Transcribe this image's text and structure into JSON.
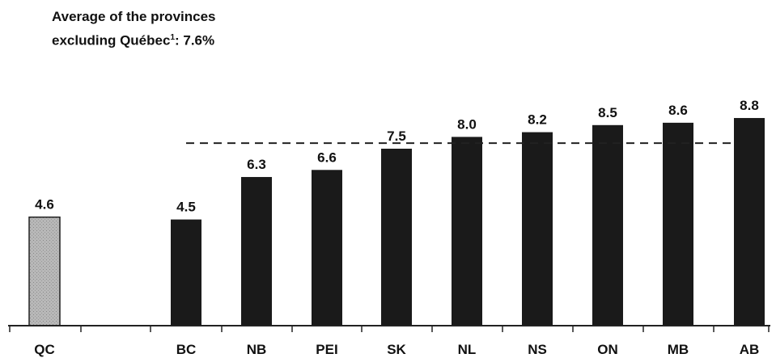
{
  "chart_data": {
    "type": "bar",
    "title": "",
    "xlabel": "",
    "ylabel": "",
    "ylim": [
      0,
      9.4
    ],
    "grid": false,
    "legend": "none",
    "categories": [
      "QC",
      "BC",
      "NB",
      "PEI",
      "SK",
      "NL",
      "NS",
      "ON",
      "MB",
      "AB"
    ],
    "values": [
      4.6,
      4.5,
      6.3,
      6.6,
      7.5,
      8.0,
      8.2,
      8.5,
      8.6,
      8.8
    ],
    "value_labels": [
      "4.6",
      "4.5",
      "6.3",
      "6.6",
      "7.5",
      "8.0",
      "8.2",
      "8.5",
      "8.6",
      "8.8"
    ],
    "highlight_category": "QC",
    "reference_line": {
      "value": 7.6,
      "label_line1": "Average of the provinces",
      "label_line2": "excluding Québec",
      "footnote_marker": "1",
      "label_value": ": 7.6%"
    },
    "colors": {
      "bar": "#1a1a1a",
      "highlight_bar": "#b8b8b8",
      "highlight_border": "#222222",
      "axis": "#222222",
      "reference_line": "#222222"
    }
  }
}
